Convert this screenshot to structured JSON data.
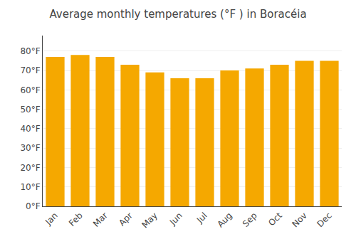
{
  "chart_data": {
    "type": "bar",
    "title": "Average monthly temperatures (°F ) in Boracéia",
    "categories": [
      "Jan",
      "Feb",
      "Mar",
      "Apr",
      "May",
      "Jun",
      "Jul",
      "Aug",
      "Sep",
      "Oct",
      "Nov",
      "Dec"
    ],
    "values": [
      77,
      78,
      77,
      73,
      69,
      66,
      66,
      70,
      71,
      73,
      75,
      75
    ],
    "color": "#F5A800",
    "ylim": [
      0,
      88
    ],
    "yticks": [
      {
        "value": 0,
        "label": "0°F"
      },
      {
        "value": 10,
        "label": "10°F"
      },
      {
        "value": 20,
        "label": "20°F"
      },
      {
        "value": 30,
        "label": "30°F"
      },
      {
        "value": 40,
        "label": "40°F"
      },
      {
        "value": 50,
        "label": "50°F"
      },
      {
        "value": 60,
        "label": "60°F"
      },
      {
        "value": 70,
        "label": "70°F"
      },
      {
        "value": 80,
        "label": "80°F"
      }
    ],
    "grid": true
  }
}
